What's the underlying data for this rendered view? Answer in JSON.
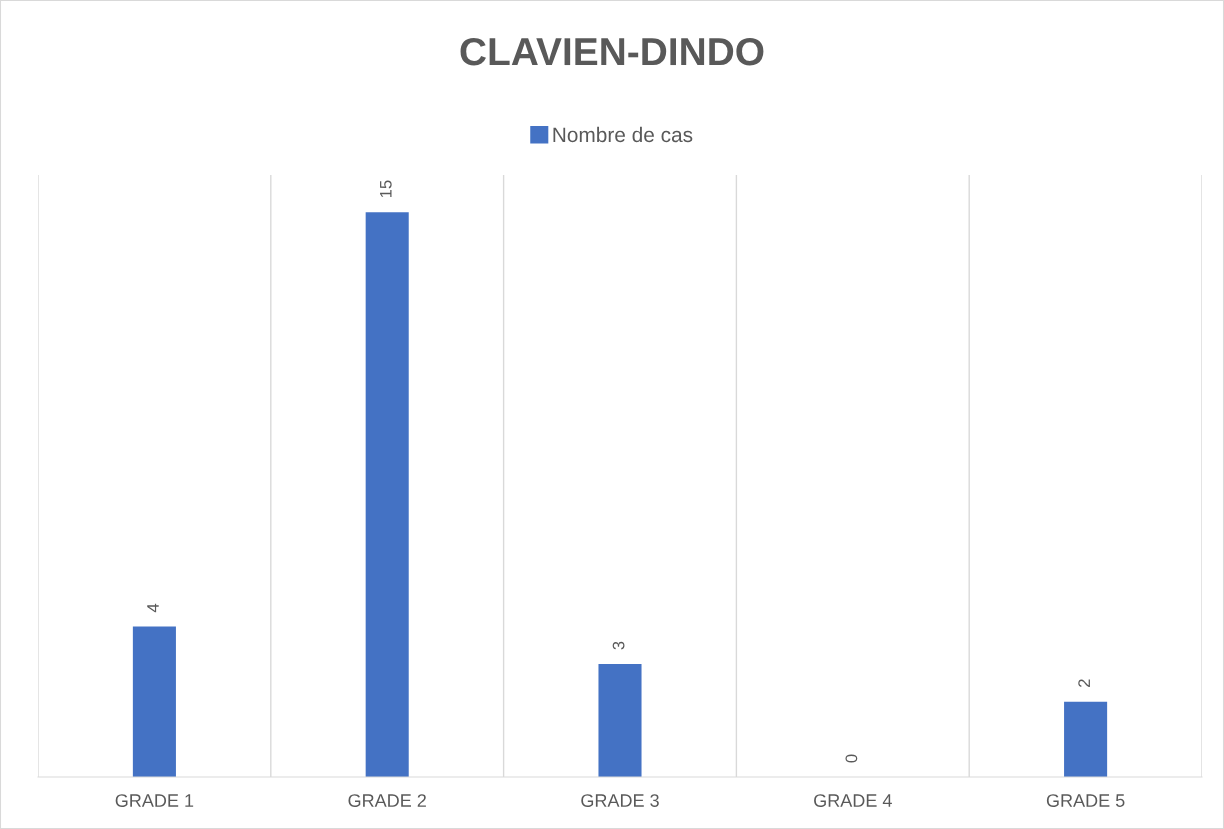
{
  "chart_data": {
    "type": "bar",
    "title": "CLAVIEN-DINDO",
    "categories": [
      "GRADE 1",
      "GRADE 2",
      "GRADE 3",
      "GRADE 4",
      "GRADE 5"
    ],
    "series": [
      {
        "name": "Nombre de cas",
        "color": "#4472c4",
        "values": [
          4,
          15,
          3,
          0,
          2
        ]
      }
    ],
    "data_labels": true,
    "grid": "x",
    "legend": "top"
  }
}
